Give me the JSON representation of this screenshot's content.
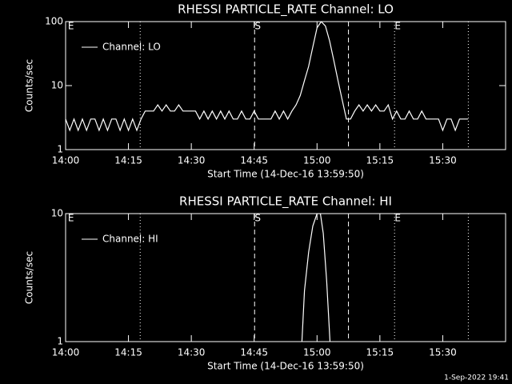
{
  "chart_data": [
    {
      "type": "line",
      "title": "RHESSI PARTICLE_RATE Channel: LO",
      "x_label": "Start Time (14-Dec-16 13:59:50)",
      "y_label": "Counts/sec",
      "xlim": [
        0,
        105
      ],
      "xticks": [
        {
          "value": 0,
          "label": "14:00"
        },
        {
          "value": 15,
          "label": "14:15"
        },
        {
          "value": 30,
          "label": "14:30"
        },
        {
          "value": 45,
          "label": "14:45"
        },
        {
          "value": 60,
          "label": "15:00"
        },
        {
          "value": 75,
          "label": "15:15"
        },
        {
          "value": 90,
          "label": "15:30"
        }
      ],
      "ylim": [
        1,
        100
      ],
      "yticks": [
        1,
        10,
        100
      ],
      "log_y": true,
      "legend": "upper left",
      "vlines": [
        {
          "x": 17.8,
          "style": "dotted"
        },
        {
          "x": 45.1,
          "style": "dashed"
        },
        {
          "x": 67.5,
          "style": "dashed"
        },
        {
          "x": 78.5,
          "style": "dotted"
        },
        {
          "x": 96.1,
          "style": "dotted"
        }
      ],
      "annotations": [
        {
          "text": "E",
          "x": 0.5
        },
        {
          "text": "S",
          "x": 45.1
        },
        {
          "text": "E",
          "x": 78.5
        }
      ],
      "x": [
        0,
        1,
        2,
        3,
        4,
        5,
        6,
        7,
        8,
        9,
        10,
        11,
        12,
        13,
        14,
        15,
        16,
        17,
        18,
        19,
        20,
        21,
        22,
        23,
        24,
        25,
        26,
        27,
        28,
        29,
        30,
        31,
        32,
        33,
        34,
        35,
        36,
        37,
        38,
        39,
        40,
        41,
        42,
        43,
        44,
        45,
        46,
        47,
        48,
        49,
        50,
        51,
        52,
        53,
        54,
        55,
        56,
        57,
        58,
        59,
        60,
        61,
        62,
        63,
        64,
        65,
        66,
        67,
        68,
        69,
        70,
        71,
        72,
        73,
        74,
        75,
        76,
        77,
        78,
        79,
        80,
        81,
        82,
        83,
        84,
        85,
        86,
        87,
        88,
        89,
        90,
        91,
        92,
        93,
        94,
        95,
        96
      ],
      "series": [
        {
          "name": "Channel: LO",
          "color": "#ffffff",
          "values": [
            3,
            2,
            3,
            2,
            3,
            2,
            3,
            3,
            2,
            3,
            2,
            3,
            3,
            2,
            3,
            2,
            3,
            2,
            3,
            4,
            4,
            4,
            5,
            4,
            5,
            4,
            4,
            5,
            4,
            4,
            4,
            4,
            3,
            4,
            3,
            4,
            3,
            4,
            3,
            4,
            3,
            3,
            4,
            3,
            3,
            4,
            3,
            3,
            3,
            3,
            4,
            3,
            4,
            3,
            4,
            5,
            7,
            12,
            20,
            40,
            80,
            100,
            85,
            50,
            25,
            12,
            6,
            3,
            3,
            4,
            5,
            4,
            5,
            4,
            5,
            4,
            4,
            5,
            3,
            4,
            3,
            3,
            4,
            3,
            3,
            4,
            3,
            3,
            3,
            3,
            2,
            3,
            3,
            2,
            3,
            3,
            3
          ]
        }
      ]
    },
    {
      "type": "line",
      "title": "RHESSI PARTICLE_RATE Channel: HI",
      "x_label": "Start Time (14-Dec-16 13:59:50)",
      "y_label": "Counts/sec",
      "xlim": [
        0,
        105
      ],
      "xticks": [
        {
          "value": 0,
          "label": "14:00"
        },
        {
          "value": 15,
          "label": "14:15"
        },
        {
          "value": 30,
          "label": "14:30"
        },
        {
          "value": 45,
          "label": "14:45"
        },
        {
          "value": 60,
          "label": "15:00"
        },
        {
          "value": 75,
          "label": "15:15"
        },
        {
          "value": 90,
          "label": "15:30"
        }
      ],
      "ylim": [
        1,
        10
      ],
      "yticks": [
        1,
        10
      ],
      "log_y": true,
      "legend": "upper left",
      "vlines": [
        {
          "x": 17.8,
          "style": "dotted"
        },
        {
          "x": 45.1,
          "style": "dashed"
        },
        {
          "x": 67.5,
          "style": "dashed"
        },
        {
          "x": 78.5,
          "style": "dotted"
        },
        {
          "x": 96.1,
          "style": "dotted"
        }
      ],
      "annotations": [
        {
          "text": "E",
          "x": 0.5
        },
        {
          "text": "S",
          "x": 45.1
        },
        {
          "text": "E",
          "x": 78.5
        }
      ],
      "x": [
        56.4,
        57,
        58,
        59,
        60,
        60.8,
        61.5,
        62.3,
        63.1
      ],
      "series": [
        {
          "name": "Channel: HI",
          "color": "#ffffff",
          "values": [
            1,
            2.5,
            5,
            8,
            10,
            10,
            7,
            3,
            1
          ]
        }
      ]
    }
  ],
  "footer": "1-Sep-2022 19:41"
}
